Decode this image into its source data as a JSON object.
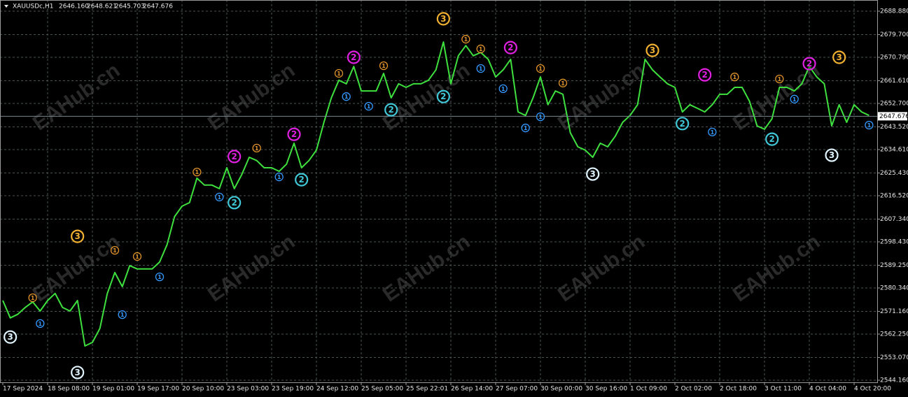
{
  "chart_data": {
    "type": "line",
    "header": {
      "symbol": "XAUUSDc,H1",
      "ohlc": [
        "2646.160",
        "2648.621",
        "2645.703",
        "2647.676"
      ]
    },
    "watermark": "EAHub.cn",
    "last_price": {
      "value": 2647.676,
      "label": "2647.676"
    },
    "color": "#3ee03e",
    "grid": true,
    "ylim": [
      2543.34,
      2693.27
    ],
    "yticks": [
      {
        "value": 2688.88,
        "label": "2688.880"
      },
      {
        "value": 2679.7,
        "label": "2679.700"
      },
      {
        "value": 2670.79,
        "label": "2670.790"
      },
      {
        "value": 2661.61,
        "label": "2661.610"
      },
      {
        "value": 2652.7,
        "label": "2652.700"
      },
      {
        "value": 2643.52,
        "label": "2643.520"
      },
      {
        "value": 2634.61,
        "label": "2634.610"
      },
      {
        "value": 2625.43,
        "label": "2625.430"
      },
      {
        "value": 2616.52,
        "label": "2616.520"
      },
      {
        "value": 2607.34,
        "label": "2607.340"
      },
      {
        "value": 2598.43,
        "label": "2598.430"
      },
      {
        "value": 2589.25,
        "label": "2589.250"
      },
      {
        "value": 2580.34,
        "label": "2580.340"
      },
      {
        "value": 2571.16,
        "label": "2571.160"
      },
      {
        "value": 2562.25,
        "label": "2562.250"
      },
      {
        "value": 2553.07,
        "label": "2553.070"
      },
      {
        "value": 2544.16,
        "label": "2544.160"
      }
    ],
    "categories": [
      "17 Sep 2024",
      null,
      null,
      null,
      null,
      null,
      "18 Sep 08:00",
      null,
      null,
      null,
      null,
      null,
      "19 Sep 01:00",
      null,
      null,
      null,
      null,
      null,
      "19 Sep 17:00",
      null,
      null,
      null,
      null,
      null,
      "20 Sep 10:00",
      null,
      null,
      null,
      null,
      null,
      "23 Sep 03:00",
      null,
      null,
      null,
      null,
      null,
      "23 Sep 19:00",
      null,
      null,
      null,
      null,
      null,
      "24 Sep 12:00",
      null,
      null,
      null,
      null,
      null,
      "25 Sep 05:00",
      null,
      null,
      null,
      null,
      null,
      "25 Sep 22:01",
      null,
      null,
      null,
      null,
      null,
      "26 Sep 14:00",
      null,
      null,
      null,
      null,
      null,
      "27 Sep 07:00",
      null,
      null,
      null,
      null,
      null,
      "30 Sep 00:00",
      null,
      null,
      null,
      null,
      null,
      "30 Sep 16:00",
      null,
      null,
      null,
      null,
      null,
      "1 Oct 09:00",
      null,
      null,
      null,
      null,
      null,
      "2 Oct 02:00",
      null,
      null,
      null,
      null,
      null,
      "2 Oct 18:00",
      null,
      null,
      null,
      null,
      null,
      "3 Oct 11:00",
      null,
      null,
      null,
      null,
      null,
      "4 Oct 04:00",
      null,
      null,
      null,
      null,
      null,
      "4 Oct 20:00",
      null,
      null
    ],
    "values": [
      2575.4,
      2568.6,
      2570.0,
      2572.7,
      2574.9,
      2571.3,
      2575.4,
      2578.2,
      2572.7,
      2571.3,
      2575.4,
      2557.6,
      2559.0,
      2564.5,
      2578.2,
      2586.4,
      2580.9,
      2589.1,
      2587.8,
      2587.8,
      2587.8,
      2590.5,
      2597.4,
      2608.3,
      2612.4,
      2613.8,
      2623.4,
      2620.7,
      2620.7,
      2619.3,
      2627.5,
      2619.3,
      2624.8,
      2631.6,
      2630.3,
      2627.5,
      2627.5,
      2626.1,
      2628.9,
      2637.1,
      2627.5,
      2630.3,
      2634.4,
      2645.3,
      2654.9,
      2661.8,
      2660.4,
      2667.2,
      2657.6,
      2657.6,
      2657.6,
      2664.5,
      2654.9,
      2660.4,
      2659.0,
      2660.4,
      2660.4,
      2661.8,
      2665.9,
      2676.8,
      2660.4,
      2671.4,
      2675.4,
      2671.4,
      2672.7,
      2670.0,
      2663.1,
      2665.9,
      2670.0,
      2649.4,
      2648.0,
      2654.9,
      2663.1,
      2652.2,
      2657.6,
      2656.3,
      2641.2,
      2635.7,
      2634.4,
      2631.6,
      2637.1,
      2635.7,
      2639.8,
      2645.3,
      2648.0,
      2652.2,
      2670.0,
      2665.9,
      2663.1,
      2660.4,
      2659.0,
      2649.4,
      2652.2,
      2650.8,
      2649.4,
      2652.2,
      2656.3,
      2656.3,
      2659.0,
      2659.0,
      2653.5,
      2643.9,
      2642.6,
      2646.7,
      2659.0,
      2659.0,
      2657.6,
      2660.4,
      2667.2,
      2663.1,
      2660.4,
      2643.9,
      2652.2,
      2645.3,
      2652.2,
      2649.4,
      2648.0
    ],
    "markers": [
      {
        "label": "1",
        "color": "#e0922a",
        "index": [
          4,
          15,
          18,
          26,
          34,
          45,
          51,
          62,
          64,
          72,
          75,
          98,
          104
        ],
        "values": [
          2576.5,
          2595.1,
          2592.7,
          2625.8,
          2635.2,
          2664.5,
          2667.5,
          2677.9,
          2674.1,
          2666.4,
          2660.7,
          2663.1,
          2662.3
        ]
      },
      {
        "label": "1",
        "color": "#3399ff",
        "index": [
          5,
          16,
          21,
          29,
          37,
          46,
          49,
          64,
          67,
          70,
          72,
          95,
          106,
          116
        ],
        "values": [
          2566.4,
          2569.9,
          2584.7,
          2616.0,
          2623.9,
          2655.4,
          2651.6,
          2666.4,
          2658.5,
          2643.1,
          2647.5,
          2641.5,
          2654.4,
          2644.2
        ]
      },
      {
        "label": "2",
        "color": "#e020e0",
        "index": [
          31,
          39,
          47,
          68,
          94,
          108
        ],
        "values": [
          2631.9,
          2640.6,
          2670.8,
          2674.6,
          2663.9,
          2668.3
        ]
      },
      {
        "label": "2",
        "color": "#40c8d8",
        "index": [
          31,
          40,
          52,
          59,
          91,
          103
        ],
        "values": [
          2613.8,
          2622.8,
          2650.2,
          2655.4,
          2644.8,
          2638.7
        ]
      },
      {
        "label": "3",
        "color": "#f0b030",
        "index": [
          10,
          59,
          87,
          112
        ],
        "values": [
          2600.6,
          2685.9,
          2673.5,
          2670.8
        ]
      },
      {
        "label": "3",
        "color": "#e0f4ff",
        "index": [
          1,
          10,
          79,
          111
        ],
        "values": [
          2561.1,
          2547.2,
          2625.0,
          2632.4
        ]
      }
    ]
  }
}
